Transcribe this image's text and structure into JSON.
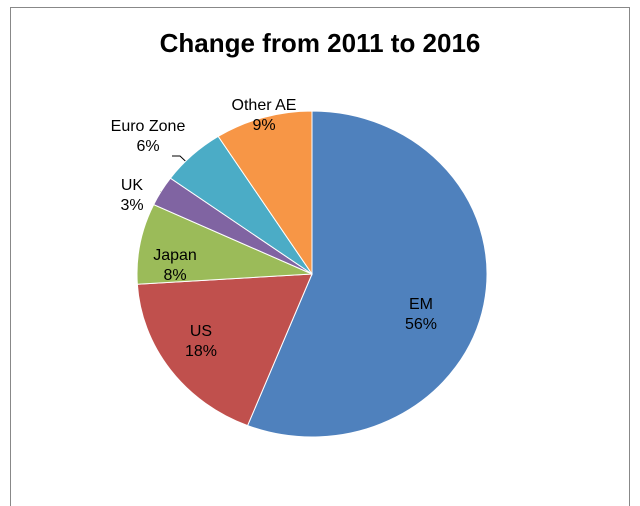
{
  "chart_data": {
    "type": "pie",
    "title": "Change from 2011 to 2016",
    "categories": [
      "EM",
      "US",
      "Japan",
      "UK",
      "Euro Zone",
      "Other AE"
    ],
    "values": [
      56,
      18,
      8,
      3,
      6,
      9
    ],
    "value_labels": [
      "56%",
      "18%",
      "8%",
      "3%",
      "6%",
      "9%"
    ],
    "colors": [
      "#4f81bd",
      "#c0504d",
      "#9bbb59",
      "#8064a2",
      "#4bacc6",
      "#f79646"
    ]
  }
}
